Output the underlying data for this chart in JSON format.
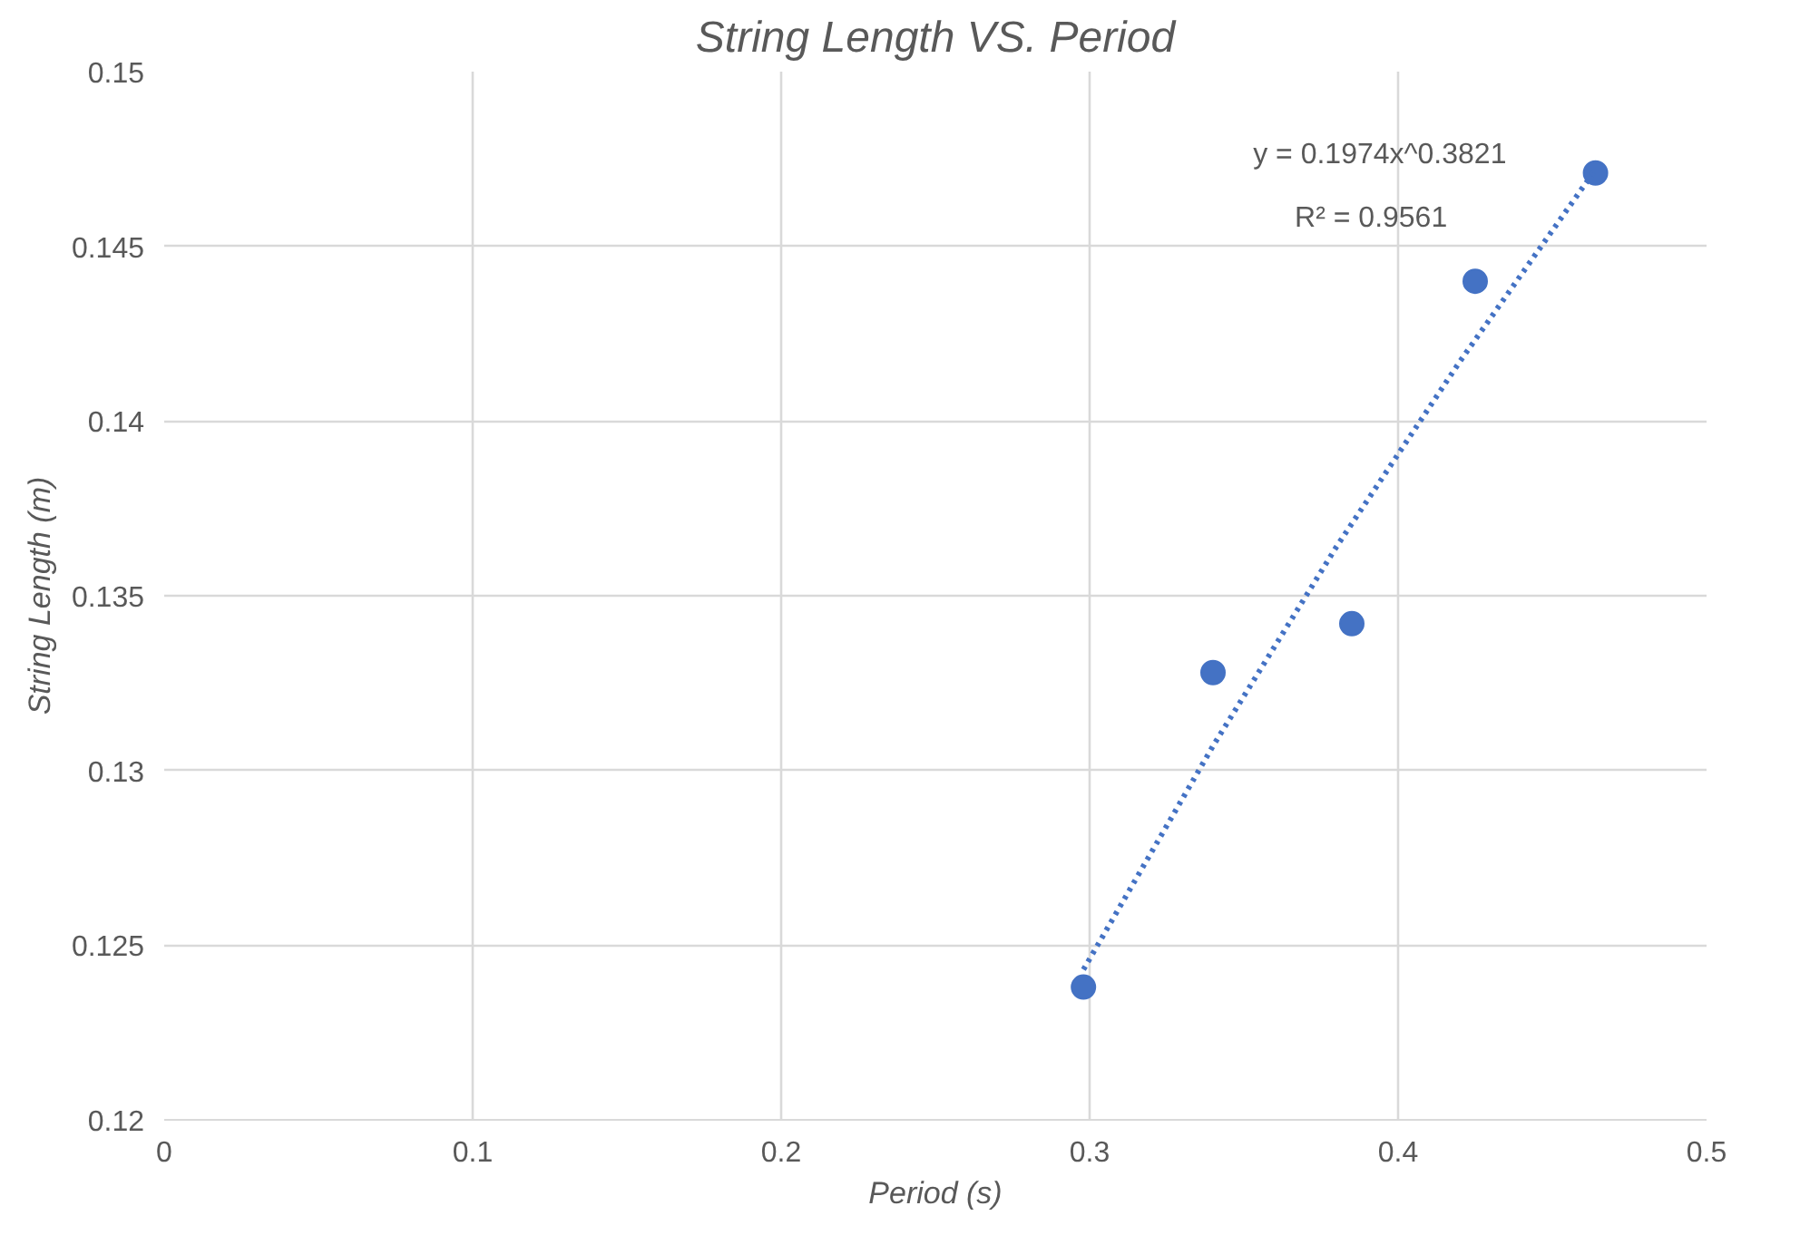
{
  "chart_data": {
    "type": "scatter",
    "title": "String Length VS. Period",
    "xlabel": "Period (s)",
    "ylabel": "String Length (m)",
    "x": [
      0.298,
      0.34,
      0.385,
      0.425,
      0.464
    ],
    "series": [
      {
        "color": "#4472c4",
        "marker": "circle",
        "values": [
          0.1238,
          0.1328,
          0.1342,
          0.144,
          0.1471
        ]
      },
      {
        "type": "line",
        "color": "#4472c4",
        "line_style": "dotted",
        "marker": "none",
        "x": [
          0.298,
          0.34,
          0.38,
          0.42,
          0.464
        ],
        "values": [
          0.1243,
          0.1307,
          0.1364,
          0.1417,
          0.1472
        ]
      }
    ],
    "annotations": [
      "y = 0.1974x^0.3821",
      "R² = 0.9561"
    ],
    "xlim": [
      0,
      0.5
    ],
    "xticks": [
      0,
      0.1,
      0.2,
      0.3,
      0.4,
      0.5
    ],
    "ylim": [
      0.12,
      0.15
    ],
    "yticks": [
      0.12,
      0.125,
      0.13,
      0.135,
      0.14,
      0.145,
      0.15
    ],
    "grid": true
  }
}
